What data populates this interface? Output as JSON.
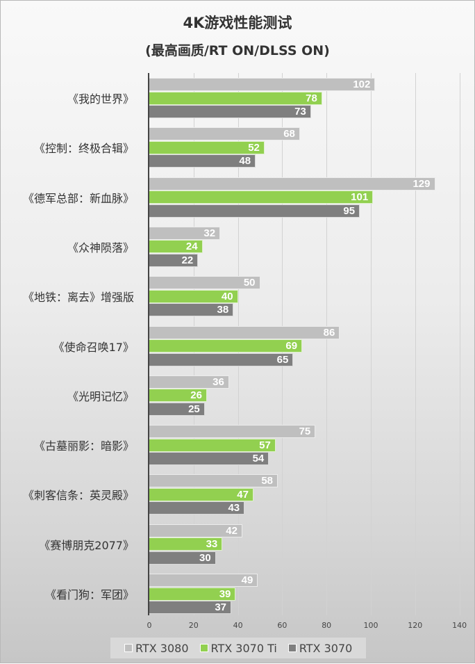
{
  "header": {
    "title": "4K游戏性能测试",
    "subtitle": "(最高画质/RT ON/DLSS ON)"
  },
  "colors": {
    "rtx3080": "#bfbfbf",
    "rtx3070ti": "#92d050",
    "rtx3070": "#7f7f7f"
  },
  "legend": [
    {
      "label": "RTX 3080",
      "color": "#bfbfbf"
    },
    {
      "label": "RTX 3070 Ti",
      "color": "#92d050"
    },
    {
      "label": "RTX 3070",
      "color": "#7f7f7f"
    }
  ],
  "chart_data": {
    "type": "bar",
    "orientation": "horizontal",
    "title": "4K游戏性能测试",
    "subtitle": "(最高画质/RT ON/DLSS ON)",
    "xlabel": "",
    "ylabel": "",
    "xlim": [
      0,
      140
    ],
    "xticks": [
      0,
      20,
      40,
      60,
      80,
      100,
      120,
      140
    ],
    "grid": true,
    "legend_position": "bottom",
    "data_labels": true,
    "categories": [
      "《我的世界》",
      "《控制：终极合辑》",
      "《德军总部：新血脉》",
      "《众神陨落》",
      "《地铁：离去》增强版",
      "《使命召唤17》",
      "《光明记忆》",
      "《古墓丽影：暗影》",
      "《刺客信条：英灵殿》",
      "《赛博朋克2077》",
      "《看门狗：军团》"
    ],
    "series": [
      {
        "name": "RTX 3080",
        "color": "#bfbfbf",
        "values": [
          102,
          68,
          129,
          32,
          50,
          86,
          36,
          75,
          58,
          42,
          49
        ]
      },
      {
        "name": "RTX 3070 Ti",
        "color": "#92d050",
        "values": [
          78,
          52,
          101,
          24,
          40,
          69,
          26,
          57,
          47,
          33,
          39
        ]
      },
      {
        "name": "RTX 3070",
        "color": "#7f7f7f",
        "values": [
          73,
          48,
          95,
          22,
          38,
          65,
          25,
          54,
          43,
          30,
          37
        ]
      }
    ]
  }
}
